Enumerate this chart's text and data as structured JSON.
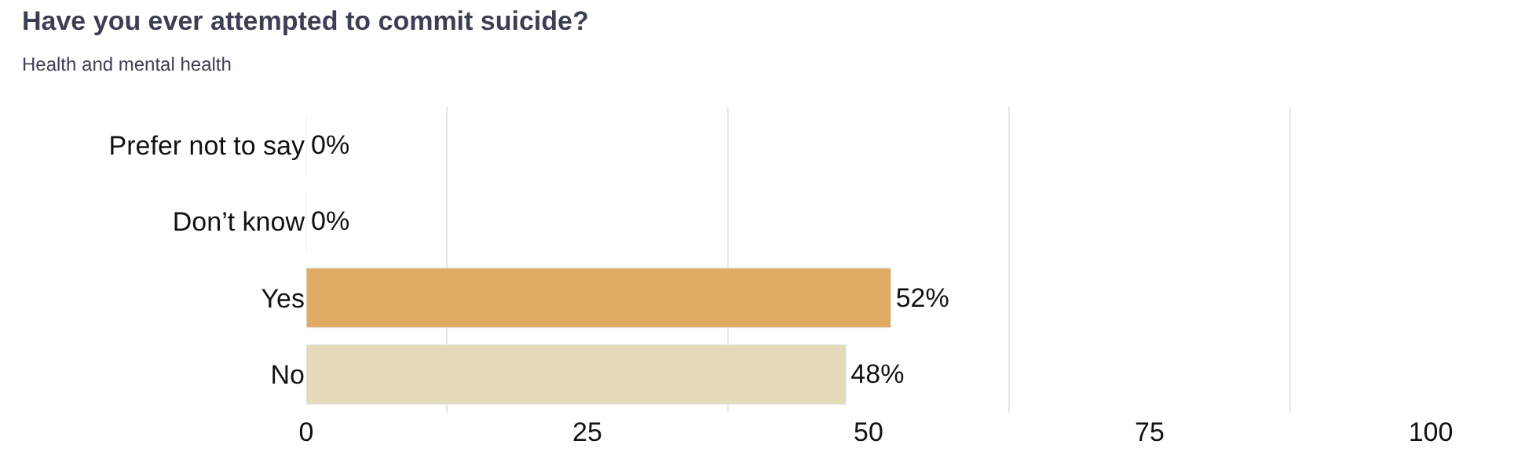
{
  "chart_data": {
    "type": "bar",
    "orientation": "horizontal",
    "title": "Have you ever attempted to commit suicide?",
    "subtitle": "Health and mental health",
    "categories": [
      "Prefer not to say",
      "Don’t know",
      "Yes",
      "No"
    ],
    "values": [
      0,
      0,
      52,
      48
    ],
    "colors": [
      "#dfab62",
      "#dfab62",
      "#dfab62",
      "#e3dbb9"
    ],
    "value_labels": [
      "0%",
      "0%",
      "52%",
      "48%"
    ],
    "xlim": [
      0,
      100
    ],
    "xticks": [
      0,
      {
        "value": 12.5,
        "label": null
      },
      25,
      {
        "value": 37.5,
        "label": null
      },
      50,
      {
        "value": 62.5,
        "label": null
      },
      75,
      {
        "value": 87.5,
        "label": null
      },
      100
    ],
    "grid": "x",
    "legend": false
  }
}
